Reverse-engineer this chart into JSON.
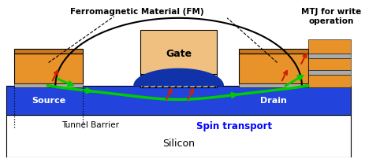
{
  "fig_width": 4.64,
  "fig_height": 2.03,
  "dpi": 100,
  "bg_color": "#ffffff",
  "silicon_color": "#2244dd",
  "silicon_dark": "#1133aa",
  "fm_orange": "#e8922a",
  "fm_dark": "#c87820",
  "gate_fill": "#f0c080",
  "gate_oxide_color": "#cccccc",
  "spin_color": "#00cc00",
  "mtj_gray": "#aaaaaa",
  "text_black": "#000000",
  "text_blue": "#0000ff",
  "arrow_red": "#cc2200",
  "border_color": "#000000",
  "labels": {
    "fm": "Ferromagnetic Material (FM)",
    "mtj": "MTJ for write\noperation",
    "gate": "Gate",
    "source": "Source",
    "drain": "Drain",
    "tunnel": "Tunnel Barrier",
    "spin": "Spin transport",
    "silicon": "Silicon"
  }
}
